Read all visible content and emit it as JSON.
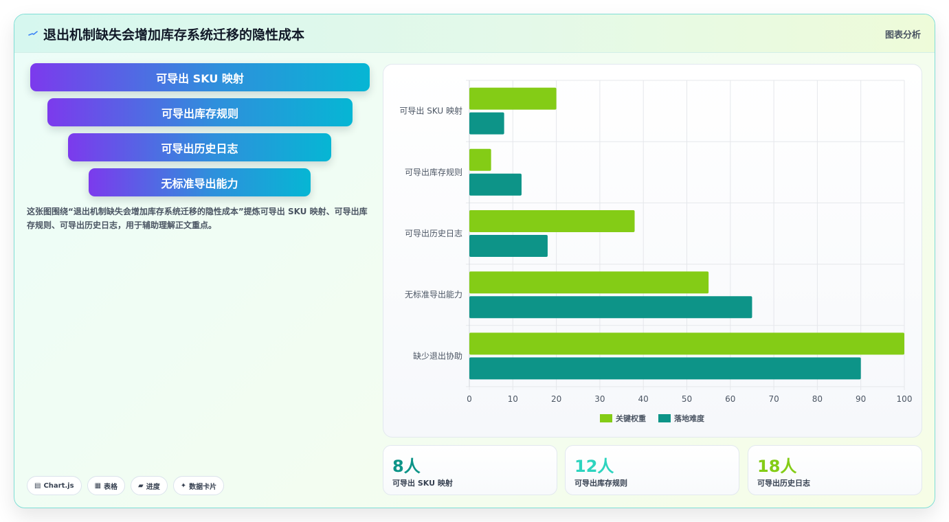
{
  "header": {
    "title": "退出机制缺失会增加库存系统迁移的隐性成本",
    "tag": "图表分析",
    "icon": "trend-spark-icon"
  },
  "funnel": {
    "items": [
      "可导出 SKU 映射",
      "可导出库存规则",
      "可导出历史日志",
      "无标准导出能力"
    ]
  },
  "description": "这张图围绕“退出机制缺失会增加库存系统迁移的隐性成本”提炼可导出 SKU 映射、可导出库存规则、可导出历史日志，用于辅助理解正文重点。",
  "chips": [
    {
      "icon": "chart-icon",
      "glyph": "▤",
      "label": "Chart.js"
    },
    {
      "icon": "table-icon",
      "glyph": "▦",
      "label": "表格"
    },
    {
      "icon": "progress-icon",
      "glyph": "▰",
      "label": "进度"
    },
    {
      "icon": "sparkle-icon",
      "glyph": "✦",
      "label": "数据卡片"
    }
  ],
  "stats": [
    {
      "value": "8人",
      "label": "可导出 SKU 映射",
      "color": "#0d9488"
    },
    {
      "value": "12人",
      "label": "可导出库存规则",
      "color": "#2dd4bf"
    },
    {
      "value": "18人",
      "label": "可导出历史日志",
      "color": "#84cc16"
    }
  ],
  "chart_data": {
    "type": "bar",
    "orientation": "horizontal",
    "categories": [
      "可导出 SKU 映射",
      "可导出库存规则",
      "可导出历史日志",
      "无标准导出能力",
      "缺少退出协助"
    ],
    "series": [
      {
        "name": "关键权重",
        "color": "#84cc16",
        "values": [
          20,
          5,
          38,
          55,
          100
        ]
      },
      {
        "name": "落地难度",
        "color": "#0d9488",
        "values": [
          8,
          12,
          18,
          65,
          90
        ]
      }
    ],
    "xlim": [
      0,
      100
    ],
    "xticks": [
      0,
      10,
      20,
      30,
      40,
      50,
      60,
      70,
      80,
      90,
      100
    ],
    "grid": true,
    "legend_position": "bottom"
  }
}
